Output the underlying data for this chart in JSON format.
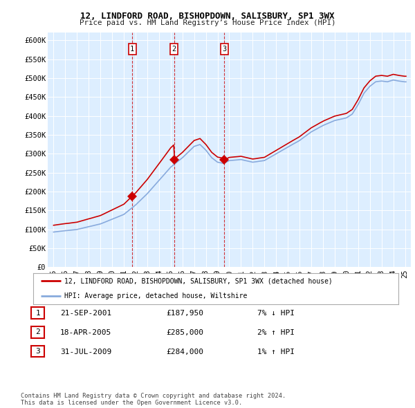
{
  "title": "12, LINDFORD ROAD, BISHOPDOWN, SALISBURY, SP1 3WX",
  "subtitle": "Price paid vs. HM Land Registry’s House Price Index (HPI)",
  "ylim": [
    0,
    620000
  ],
  "yticks": [
    0,
    50000,
    100000,
    150000,
    200000,
    250000,
    300000,
    350000,
    400000,
    450000,
    500000,
    550000,
    600000
  ],
  "ytick_labels": [
    "£0",
    "£50K",
    "£100K",
    "£150K",
    "£200K",
    "£250K",
    "£300K",
    "£350K",
    "£400K",
    "£450K",
    "£500K",
    "£550K",
    "£600K"
  ],
  "background_color": "#ffffff",
  "plot_bg_color": "#ddeeff",
  "grid_color": "#ffffff",
  "sale_color": "#cc0000",
  "hpi_color": "#88aadd",
  "transactions": [
    {
      "label": "1",
      "date_num": 2001.72,
      "price": 187950
    },
    {
      "label": "2",
      "date_num": 2005.29,
      "price": 285000
    },
    {
      "label": "3",
      "date_num": 2009.58,
      "price": 284000
    }
  ],
  "vline_dates": [
    2001.72,
    2005.29,
    2009.58
  ],
  "legend_sale_label": "12, LINDFORD ROAD, BISHOPDOWN, SALISBURY, SP1 3WX (detached house)",
  "legend_hpi_label": "HPI: Average price, detached house, Wiltshire",
  "table_rows": [
    {
      "num": "1",
      "date": "21-SEP-2001",
      "price": "£187,950",
      "change": "7% ↓ HPI"
    },
    {
      "num": "2",
      "date": "18-APR-2005",
      "price": "£285,000",
      "change": "2% ↑ HPI"
    },
    {
      "num": "3",
      "date": "31-JUL-2009",
      "price": "£284,000",
      "change": "1% ↑ HPI"
    }
  ],
  "footer": "Contains HM Land Registry data © Crown copyright and database right 2024.\nThis data is licensed under the Open Government Licence v3.0.",
  "xlim": [
    1994.5,
    2025.5
  ],
  "xticks": [
    1995,
    1996,
    1997,
    1998,
    1999,
    2000,
    2001,
    2002,
    2003,
    2004,
    2005,
    2006,
    2007,
    2008,
    2009,
    2010,
    2011,
    2012,
    2013,
    2014,
    2015,
    2016,
    2017,
    2018,
    2019,
    2020,
    2021,
    2022,
    2023,
    2024,
    2025
  ]
}
